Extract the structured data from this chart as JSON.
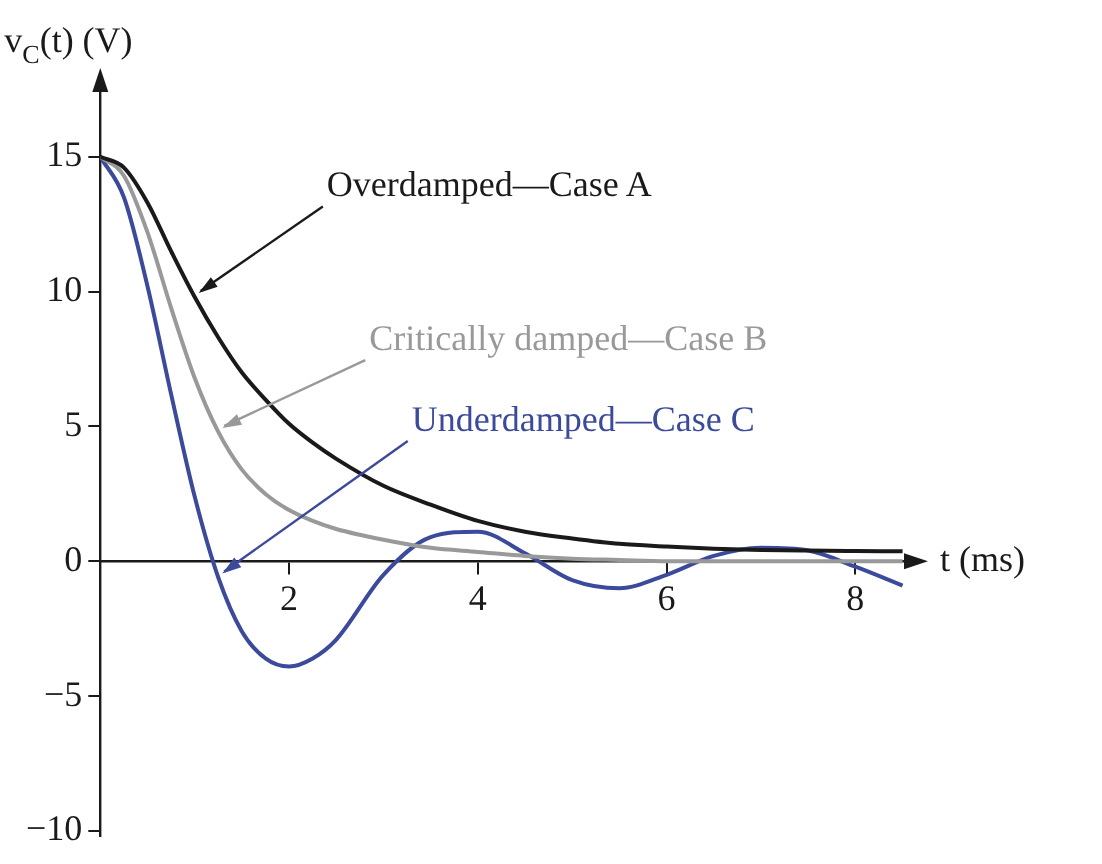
{
  "chart_data": {
    "type": "line",
    "xlabel": "t (ms)",
    "ylabel": "v$_{C}$(t) (V)",
    "x": [
      0,
      0.25,
      0.5,
      0.75,
      1,
      1.25,
      1.5,
      1.75,
      2,
      2.25,
      2.5,
      3,
      3.5,
      4,
      4.5,
      5,
      5.5,
      6,
      6.5,
      7,
      7.5,
      8,
      8.5
    ],
    "series": [
      {
        "name": "Overdamped—Case A",
        "color": "#1a1a1a",
        "values": [
          15,
          14.6,
          13.3,
          11.5,
          9.8,
          8.3,
          7.0,
          6.0,
          5.1,
          4.4,
          3.8,
          2.8,
          2.1,
          1.5,
          1.1,
          0.85,
          0.65,
          0.55,
          0.47,
          0.42,
          0.4,
          0.38,
          0.37
        ]
      },
      {
        "name": "Critically damped—Case B",
        "color": "#999999",
        "values": [
          15,
          14.3,
          12.2,
          9.4,
          6.8,
          4.8,
          3.4,
          2.5,
          1.9,
          1.5,
          1.2,
          0.8,
          0.5,
          0.35,
          0.2,
          0.1,
          0.05,
          0,
          0,
          0,
          0,
          0,
          0
        ]
      },
      {
        "name": "Underdamped—Case C",
        "color": "#3b4a9a",
        "values": [
          15,
          13.5,
          10.2,
          6.2,
          2.4,
          -0.6,
          -2.6,
          -3.6,
          -3.9,
          -3.6,
          -2.9,
          -0.5,
          0.9,
          1.1,
          0.3,
          -0.7,
          -1.0,
          -0.5,
          0.2,
          0.5,
          0.4,
          -0.2,
          -0.9
        ]
      }
    ],
    "xlim": [
      0,
      8.6
    ],
    "xticks": [
      2,
      4,
      6,
      8
    ],
    "ylim": [
      -10.2,
      17.7
    ],
    "yticks": [
      -10,
      -5,
      0,
      5,
      10,
      15
    ],
    "grid": false,
    "legend": false,
    "marker": "none",
    "line_style": "solid"
  }
}
